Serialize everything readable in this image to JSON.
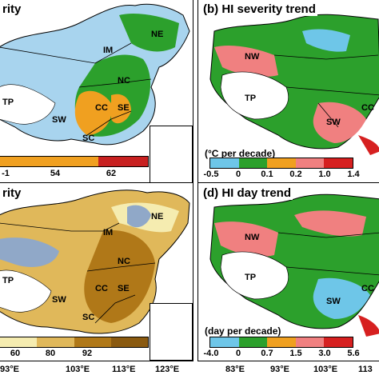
{
  "panels": {
    "a": {
      "title": "rity"
    },
    "b": {
      "title": "(b) HI severity trend",
      "unit": "(°C per decade)",
      "ticks": [
        "-0.5",
        "0",
        "0.1",
        "0.2",
        "1.0",
        "1.4"
      ]
    },
    "c": {
      "title": "rity"
    },
    "d": {
      "title": "(d) HI day trend",
      "unit": "(day per decade)",
      "ticks": [
        "-4.0",
        "0",
        "0.7",
        "1.5",
        "3.0",
        "5.6"
      ]
    }
  },
  "regions": {
    "ne": "NE",
    "im": "IM",
    "nc": "NC",
    "tp": "TP",
    "cc": "CC",
    "se": "SE",
    "sw": "SW",
    "sc": "SC",
    "nw": "NW"
  },
  "colorbar_a": {
    "ticks": [
      "-1",
      "54",
      "62"
    ]
  },
  "colorbar_c": {
    "ticks": [
      "60",
      "80",
      "92"
    ]
  },
  "colors": {
    "trend": [
      "#6ec6e8",
      "#2ca02c",
      "#f0a020",
      "#f08080",
      "#d62020"
    ],
    "severity": [
      "#90c8e8",
      "#2ca02c",
      "#f0a020",
      "#c82020"
    ],
    "days": [
      "#f5ecb0",
      "#e0b85a",
      "#b07818",
      "#8a5a10"
    ]
  },
  "axes": {
    "left": [
      "93°E",
      "103°E",
      "113°E",
      "123°E"
    ],
    "right": [
      "83°E",
      "93°E",
      "103°E",
      "113"
    ]
  }
}
